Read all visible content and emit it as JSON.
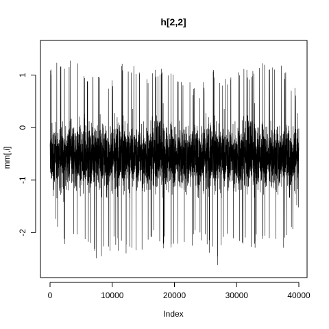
{
  "chart_data": {
    "type": "line",
    "title": "h[2,2]",
    "xlabel": "Index",
    "ylabel": "mm[,i]",
    "xlim": [
      0,
      40000
    ],
    "ylim": [
      -2.7,
      1.45
    ],
    "x_ticks": [
      0,
      10000,
      20000,
      30000,
      40000
    ],
    "x_tick_labels": [
      "0",
      "10000",
      "20000",
      "30000",
      "40000"
    ],
    "y_ticks": [
      -2,
      -1,
      0,
      1
    ],
    "y_tick_labels": [
      "-2",
      "-1",
      "0",
      "1"
    ],
    "grid": false,
    "legend": "none",
    "series": [
      {
        "color": "#000000",
        "n_points": 40000,
        "mean": -0.55,
        "approx_min": -2.65,
        "approx_max": 1.42,
        "envelope": [
          {
            "x": 0,
            "low": -1.6,
            "high": 1.15
          },
          {
            "x": 2000,
            "low": -2.4,
            "high": 1.35
          },
          {
            "x": 4000,
            "low": -2.05,
            "high": 1.35
          },
          {
            "x": 6000,
            "low": -2.2,
            "high": 1.0
          },
          {
            "x": 8000,
            "low": -2.6,
            "high": 1.05
          },
          {
            "x": 10000,
            "low": -2.3,
            "high": 0.9
          },
          {
            "x": 12000,
            "low": -2.4,
            "high": 1.3
          },
          {
            "x": 14000,
            "low": -2.5,
            "high": 1.25
          },
          {
            "x": 16000,
            "low": -2.1,
            "high": 1.0
          },
          {
            "x": 18000,
            "low": -2.3,
            "high": 1.25
          },
          {
            "x": 20000,
            "low": -2.4,
            "high": 1.2
          },
          {
            "x": 22000,
            "low": -2.4,
            "high": 0.9
          },
          {
            "x": 24000,
            "low": -2.1,
            "high": 0.75
          },
          {
            "x": 26000,
            "low": -2.45,
            "high": 1.1
          },
          {
            "x": 27000,
            "low": -2.65,
            "high": 1.1
          },
          {
            "x": 28000,
            "low": -2.2,
            "high": 1.0
          },
          {
            "x": 30000,
            "low": -2.1,
            "high": 1.2
          },
          {
            "x": 32000,
            "low": -2.4,
            "high": 1.1
          },
          {
            "x": 34000,
            "low": -2.2,
            "high": 1.42
          },
          {
            "x": 36000,
            "low": -2.35,
            "high": 1.3
          },
          {
            "x": 38000,
            "low": -2.3,
            "high": 1.1
          },
          {
            "x": 40000,
            "low": -1.6,
            "high": 0.6
          }
        ]
      }
    ]
  }
}
